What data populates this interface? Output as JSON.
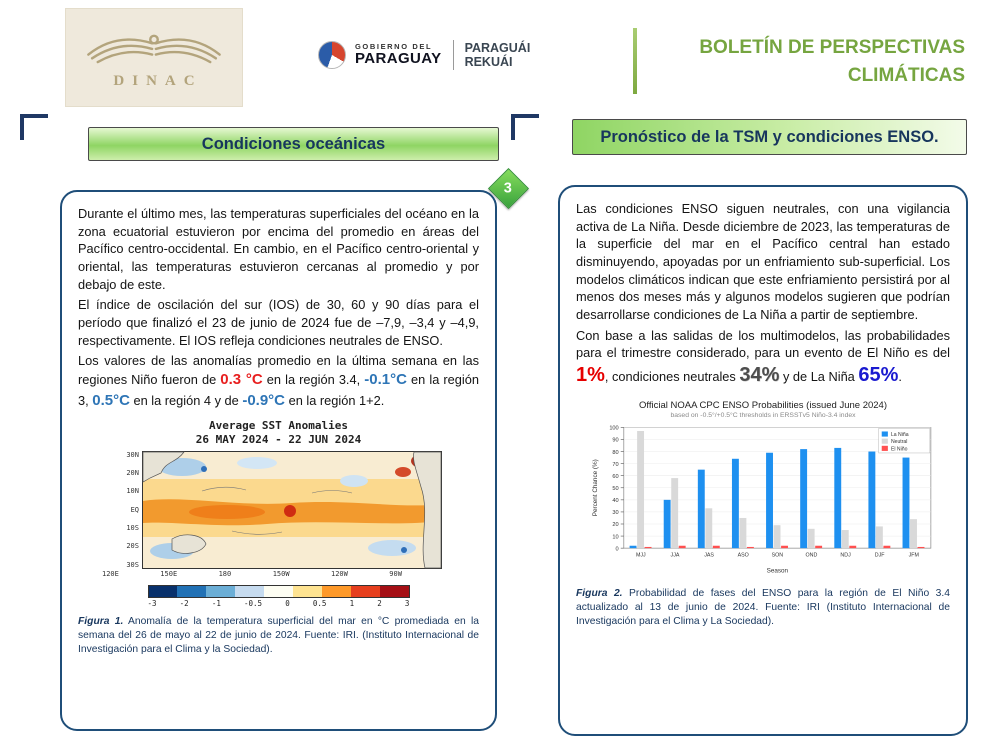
{
  "header": {
    "dinac_logo_text": "DINAC",
    "gov_logo": {
      "line1_a": "GOBIERNO DEL",
      "line1_b": "PARAGUAY",
      "line2_a": "PARAGUÁI",
      "line2_b": "REKUÁI"
    },
    "title_line1": "BOLETÍN DE PERSPECTIVAS",
    "title_line2": "CLIMÁTICAS"
  },
  "page_number": "3",
  "left_section": {
    "heading": "Condiciones oceánicas",
    "paragraph1": "Durante el último mes, las temperaturas superficiales del océano en la zona ecuatorial estuvieron por encima del promedio en áreas del Pacífico centro-occidental. En cambio, en el Pacífico centro-oriental y oriental, las temperaturas estuvieron cercanas al promedio y por debajo de este.",
    "paragraph2": "El índice de oscilación del sur (IOS) de 30, 60 y 90 días para el período que finalizó el 23 de junio de 2024 fue de –7,9, –3,4 y –4,9, respectivamente. El IOS refleja condiciones neutrales de ENSO.",
    "paragraph3_parts": {
      "p1": "Los valores de las anomalías promedio en la última semana en las regiones Niño fueron de ",
      "v1": "0.3 °C",
      "p2": " en la región 3.4, ",
      "v2": "-0.1°C",
      "p3": " en la región 3, ",
      "v3": "0.5°C",
      "p4": " en la región 4 y de ",
      "v4": "-0.9°C",
      "p5": " en la región 1+2."
    },
    "figure1_label": "Figura 1.",
    "figure1_caption": " Anomalía de la temperatura superficial del mar en °C promediada en la semana del 26 de mayo al 22 de junio de 2024. Fuente: IRI. (Instituto Internacional de Investigación para el Clima y la Sociedad)."
  },
  "right_section": {
    "heading": "Pronóstico de la TSM y condiciones ENSO.",
    "paragraph1": "Las condiciones ENSO siguen neutrales, con una vigilancia activa de La Niña. Desde diciembre de 2023, las temperaturas de la superficie del mar en el Pacífico central han estado disminuyendo, apoyadas por un enfriamiento sub-superficial. Los modelos climáticos indican que este enfriamiento persistirá por al menos dos meses más y algunos modelos sugieren que podrían desarrollarse condiciones de La Niña a partir de septiembre.",
    "paragraph2_parts": {
      "p1": "Con base a las salidas de los multimodelos, las probabilidades para el trimestre considerado, para un evento de El Niño es del ",
      "v1": "1%",
      "p2": ", condiciones neutrales ",
      "v2": "34%",
      "p3": " y de La Niña ",
      "v3": "65%",
      "p4": "."
    },
    "figure2_label": "Figura 2.",
    "figure2_caption": " Probabilidad de fases del ENSO para la región de El Niño 3.4 actualizado al 13 de junio de 2024. Fuente: IRI (Instituto Internacional de Investigación para el Clima y La Sociedad)."
  },
  "chart_data": [
    {
      "type": "heatmap",
      "title": "Average SST Anomalies",
      "subtitle": "26 MAY 2024 - 22 JUN 2024",
      "y_ticks": [
        "30N",
        "20N",
        "10N",
        "EQ",
        "10S",
        "20S",
        "30S"
      ],
      "x_ticks": [
        "120E",
        "150E",
        "180",
        "150W",
        "120W",
        "90W"
      ],
      "colorbar_ticks": [
        "-3",
        "-2",
        "-1",
        "-0.5",
        "0",
        "0.5",
        "1",
        "2",
        "3"
      ],
      "colorbar_colors": [
        "#08306b",
        "#2171b5",
        "#6baed6",
        "#c6dbef",
        "#fdfdf2",
        "#fee391",
        "#fe9929",
        "#e63f1e",
        "#a50f15"
      ]
    },
    {
      "type": "bar",
      "title": "Official NOAA CPC ENSO Probabilities (issued June 2024)",
      "subtitle": "based on -0.5°/+0.5°C thresholds in ERSSTv5 Niño-3.4 index",
      "categories": [
        "MJJ",
        "JJA",
        "JAS",
        "ASO",
        "SON",
        "OND",
        "NDJ",
        "DJF",
        "JFM"
      ],
      "series": [
        {
          "name": "La Niña",
          "color": "#1e90f0",
          "values": [
            2,
            40,
            65,
            74,
            79,
            82,
            83,
            80,
            75
          ]
        },
        {
          "name": "Neutral",
          "color": "#d9d9d9",
          "values": [
            97,
            58,
            33,
            25,
            19,
            16,
            15,
            18,
            24
          ]
        },
        {
          "name": "El Niño",
          "color": "#ff5050",
          "values": [
            1,
            2,
            2,
            1,
            2,
            2,
            2,
            2,
            1
          ]
        }
      ],
      "xlabel": "Season",
      "ylabel": "Percent Chance (%)",
      "ylim": [
        0,
        100
      ],
      "y_ticks": [
        0,
        10,
        20,
        30,
        40,
        50,
        60,
        70,
        80,
        90,
        100
      ],
      "legend_position": "top-right"
    }
  ]
}
